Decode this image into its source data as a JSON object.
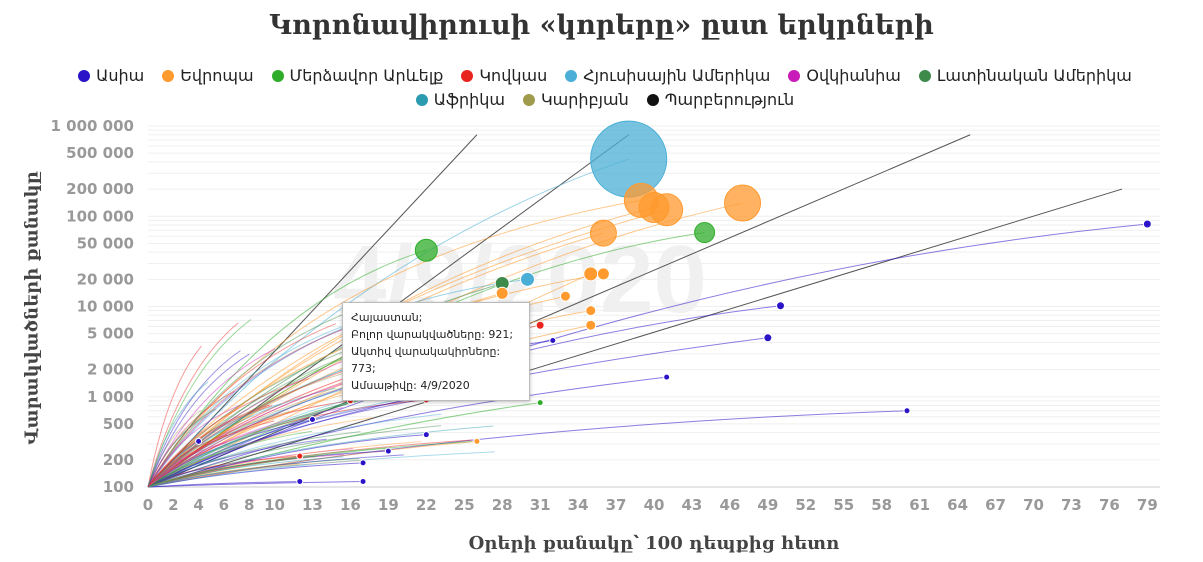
{
  "chart_data": {
    "type": "scatter",
    "title": "Կորոնավիրուսի «կորերը» ըստ երկրների",
    "xlabel": "Օրերի քանակը՝ 100 դեպքից հետո",
    "ylabel": "Վարակվածների քանակը",
    "y_scale": "log",
    "ylim": [
      100,
      1000000
    ],
    "xlim": [
      0,
      80
    ],
    "x_ticks": [
      "0",
      "2",
      "4",
      "6",
      "8",
      "10",
      "13",
      "16",
      "19",
      "22",
      "25",
      "28",
      "31",
      "34",
      "37",
      "40",
      "43",
      "46",
      "49",
      "52",
      "55",
      "58",
      "61",
      "64",
      "67",
      "70",
      "73",
      "76",
      "79"
    ],
    "y_ticks": [
      {
        "value": 100,
        "label": "100"
      },
      {
        "value": 200,
        "label": "200"
      },
      {
        "value": 500,
        "label": "500"
      },
      {
        "value": 1000,
        "label": "1 000"
      },
      {
        "value": 2000,
        "label": "2 000"
      },
      {
        "value": 5000,
        "label": "5 000"
      },
      {
        "value": 10000,
        "label": "10 000"
      },
      {
        "value": 20000,
        "label": "20 000"
      },
      {
        "value": 50000,
        "label": "50 000"
      },
      {
        "value": 100000,
        "label": "100 000"
      },
      {
        "value": 200000,
        "label": "200 000"
      },
      {
        "value": 500000,
        "label": "500 000"
      },
      {
        "value": 1000000,
        "label": "1 000 000"
      }
    ],
    "watermark": "4/9/2020",
    "legend": [
      {
        "name": "Ասիա",
        "color": "#2b14c8"
      },
      {
        "name": "Եվրոպա",
        "color": "#ff9a2e"
      },
      {
        "name": "Մերձավոր Արևելք",
        "color": "#2fad2a"
      },
      {
        "name": "Կովկաս",
        "color": "#e8241f"
      },
      {
        "name": "Հյուսիսային Ամերիկա",
        "color": "#49afd6"
      },
      {
        "name": "Օվկիանիա",
        "color": "#c81bb8"
      },
      {
        "name": "Լատինական Ամերիկա",
        "color": "#3d8a4a"
      },
      {
        "name": "Աֆրիկա",
        "color": "#2b9cb0"
      },
      {
        "name": "Կարիբյան",
        "color": "#9f9a4c"
      },
      {
        "name": "Պարբերություն",
        "color": "#111111"
      }
    ],
    "reference_lines": [
      {
        "label": "doubling-1",
        "to": [
          26,
          800000
        ]
      },
      {
        "label": "doubling-2",
        "to": [
          38,
          800000
        ]
      },
      {
        "label": "doubling-3",
        "to": [
          65,
          800000
        ]
      },
      {
        "label": "doubling-4",
        "to": [
          77,
          200000
        ]
      }
    ],
    "points": [
      {
        "region": "Հյուսիսային Ամերիկա",
        "x": 38,
        "y": 430000,
        "r": 38
      },
      {
        "region": "Եվրոպա",
        "x": 39,
        "y": 150000,
        "r": 17
      },
      {
        "region": "Եվրոպա",
        "x": 40,
        "y": 125000,
        "r": 15
      },
      {
        "region": "Եվրոպա",
        "x": 41,
        "y": 118000,
        "r": 16
      },
      {
        "region": "Եվրոպա",
        "x": 47,
        "y": 140000,
        "r": 18
      },
      {
        "region": "Եվրոպա",
        "x": 36,
        "y": 65000,
        "r": 13
      },
      {
        "region": "Մերձավոր Արևելք",
        "x": 44,
        "y": 66000,
        "r": 10
      },
      {
        "region": "Մերձավոր Արևելք",
        "x": 22,
        "y": 42000,
        "r": 11
      },
      {
        "region": "Ասիա",
        "x": 79,
        "y": 82000,
        "r": 4
      },
      {
        "region": "Լատինական Ամերիկա",
        "x": 28,
        "y": 18000,
        "r": 7
      },
      {
        "region": "Հյուսիսային Ամերիկա",
        "x": 30,
        "y": 20000,
        "r": 7
      },
      {
        "region": "Եվրոպա",
        "x": 35,
        "y": 23000,
        "r": 7
      },
      {
        "region": "Եվրոպա",
        "x": 36,
        "y": 23000,
        "r": 6
      },
      {
        "region": "Եվրոպա",
        "x": 28,
        "y": 14000,
        "r": 6
      },
      {
        "region": "Եվրոպա",
        "x": 33,
        "y": 13000,
        "r": 5
      },
      {
        "region": "Եվրոպա",
        "x": 35,
        "y": 9000,
        "r": 5
      },
      {
        "region": "Եվրոպա",
        "x": 35,
        "y": 6200,
        "r": 5
      },
      {
        "region": "Մերձավոր Արևելք",
        "x": 29,
        "y": 9500,
        "r": 5
      },
      {
        "region": "Ասիա",
        "x": 50,
        "y": 10200,
        "r": 4
      },
      {
        "region": "Կովկաս",
        "x": 31,
        "y": 6200,
        "r": 4
      },
      {
        "region": "Ասիա",
        "x": 32,
        "y": 4200,
        "r": 3
      },
      {
        "region": "Ասիա",
        "x": 49,
        "y": 4500,
        "r": 4
      },
      {
        "region": "Ասիա",
        "x": 41,
        "y": 1650,
        "r": 3
      },
      {
        "region": "Ասիա",
        "x": 60,
        "y": 700,
        "r": 3
      },
      {
        "region": "Մերձավոր Արևելք",
        "x": 30,
        "y": 2400,
        "r": 3
      },
      {
        "region": "Մերձավոր Արևելք",
        "x": 31,
        "y": 860,
        "r": 3
      },
      {
        "region": "Կովկաս",
        "x": 22,
        "y": 920,
        "r": 3
      },
      {
        "region": "Կովկաս",
        "x": 16,
        "y": 900,
        "r": 3
      },
      {
        "region": "Կովկաս",
        "x": 12,
        "y": 220,
        "r": 3
      },
      {
        "region": "Եվրոպա",
        "x": 26,
        "y": 320,
        "r": 3
      },
      {
        "region": "Ասիա",
        "x": 4,
        "y": 320,
        "r": 3
      },
      {
        "region": "Ասիա",
        "x": 12,
        "y": 115,
        "r": 3
      },
      {
        "region": "Ասիա",
        "x": 17,
        "y": 115,
        "r": 3
      },
      {
        "region": "Ասիա",
        "x": 17,
        "y": 185,
        "r": 3
      },
      {
        "region": "Ասիա",
        "x": 19,
        "y": 250,
        "r": 3
      },
      {
        "region": "Ասիա",
        "x": 22,
        "y": 380,
        "r": 3
      },
      {
        "region": "Ասիա",
        "x": 13,
        "y": 560,
        "r": 3
      }
    ],
    "tooltip": {
      "country": "Հայաստան;",
      "total_label": "Բոլոր վարակվածները: 921;",
      "active_label": "Ակտիվ վարակակիրները: 773;",
      "date_label": "Ամսաթիվը: 4/9/2020"
    }
  }
}
